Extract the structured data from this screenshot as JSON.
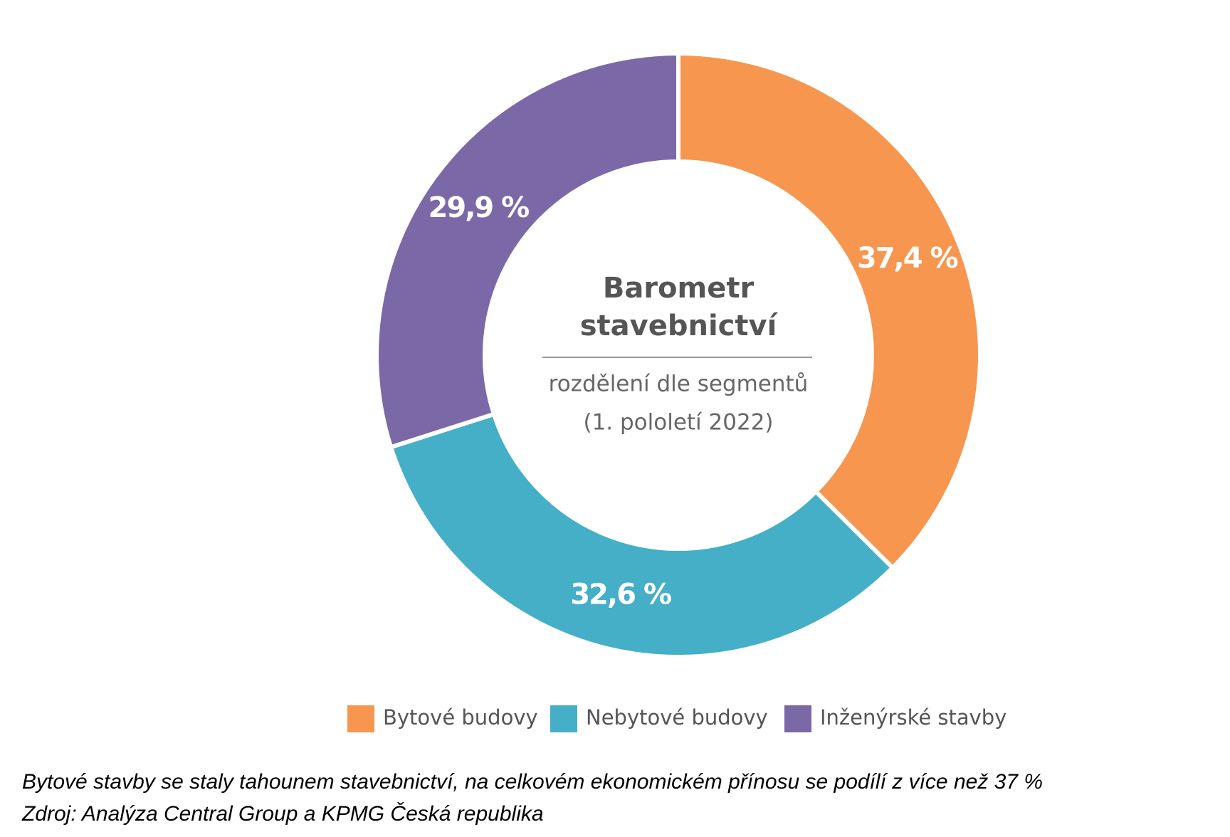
{
  "chart_data": {
    "type": "pie",
    "title_lines": [
      "Barometr",
      "stavebnictví"
    ],
    "subtitle_lines": [
      "rozdělení dle segmentů",
      "(1. pololetí 2022)"
    ],
    "categories": [
      "Bytové budovy",
      "Nebytové budovy",
      "Inženýrské stavby"
    ],
    "values": [
      37.4,
      32.6,
      29.9
    ],
    "value_labels": [
      "37,4 %",
      "32,6 %",
      "29,9 %"
    ],
    "colors": [
      "#f7964f",
      "#44afc7",
      "#7b68a6"
    ],
    "legend": "bottom"
  },
  "caption": [
    "Bytové stavby se staly tahounem stavebnictví, na celkovém ekonomickém přínosu se podílí z více než 37 %",
    "Zdroj: Analýza Central Group a KPMG Česká republika"
  ]
}
